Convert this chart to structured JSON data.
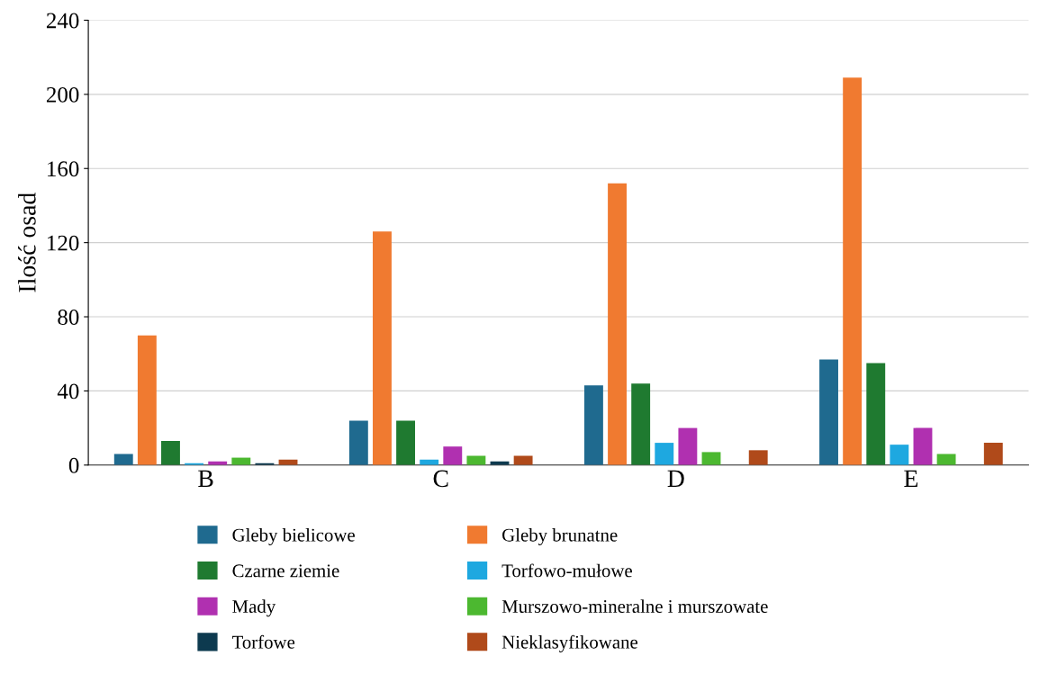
{
  "chart_data": {
    "type": "bar",
    "ylabel": "Ilość osad",
    "categories": [
      "B",
      "C",
      "D",
      "E"
    ],
    "series": [
      {
        "name": "Gleby bielicowe",
        "color": "#1f6a8f",
        "values": [
          6,
          24,
          43,
          57
        ]
      },
      {
        "name": "Gleby brunatne",
        "color": "#f07a30",
        "values": [
          70,
          126,
          152,
          209
        ]
      },
      {
        "name": "Czarne ziemie",
        "color": "#1f7a30",
        "values": [
          13,
          24,
          44,
          55
        ]
      },
      {
        "name": "Torfowo-mułowe",
        "color": "#1ea8e0",
        "values": [
          1,
          3,
          12,
          11
        ]
      },
      {
        "name": "Mady",
        "color": "#b030b0",
        "values": [
          2,
          10,
          20,
          20
        ]
      },
      {
        "name": "Murszowo-mineralne i murszowate",
        "color": "#4cb830",
        "values": [
          4,
          5,
          7,
          6
        ]
      },
      {
        "name": "Torfowe",
        "color": "#0d3a4f",
        "values": [
          1,
          2,
          0,
          0
        ]
      },
      {
        "name": "Nieklasyfikowane",
        "color": "#b04a1a",
        "values": [
          3,
          5,
          8,
          12
        ]
      }
    ],
    "ylim": [
      0,
      240
    ],
    "yticks": [
      0,
      40,
      80,
      120,
      160,
      200,
      240
    ],
    "grid": "y",
    "legend": "bottom"
  }
}
